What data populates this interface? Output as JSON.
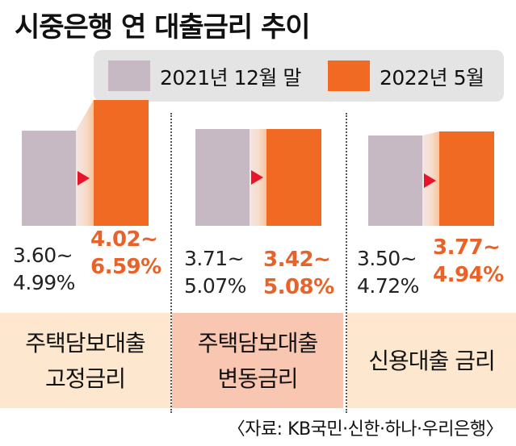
{
  "title": "시중은행 연 대출금리 추이",
  "source": "〈자료: KB국민·신한·하나·우리은행〉",
  "colors": {
    "old": "#c6b9c4",
    "new": "#f06a24",
    "arrow": "#e8142b",
    "highlight": "#fde7cf",
    "highlight_strong": "#f9c6b2"
  },
  "chart_data": {
    "type": "bar",
    "legend": [
      "2021년 12월 말",
      "2022년 5월"
    ],
    "categories": [
      {
        "label_line1": "주택담보대출",
        "label_line2": "고정금리",
        "old_label_line1": "3.60~",
        "old_label_line2": "4.99%",
        "new_label_line1": "4.02~",
        "new_label_line2": "6.59%",
        "old_range": [
          3.6,
          4.99
        ],
        "new_range": [
          4.02,
          6.59
        ]
      },
      {
        "label_line1": "주택담보대출",
        "label_line2": "변동금리",
        "old_label_line1": "3.71~",
        "old_label_line2": "5.07%",
        "new_label_line1": "3.42~",
        "new_label_line2": "5.08%",
        "old_range": [
          3.71,
          5.07
        ],
        "new_range": [
          3.42,
          5.08
        ]
      },
      {
        "label_line1": "신용대출 금리",
        "label_line2": "",
        "old_label_line1": "3.50~",
        "old_label_line2": "4.72%",
        "new_label_line1": "3.77~",
        "new_label_line2": "4.94%",
        "old_range": [
          3.5,
          4.72
        ],
        "new_range": [
          3.77,
          4.94
        ]
      }
    ]
  }
}
